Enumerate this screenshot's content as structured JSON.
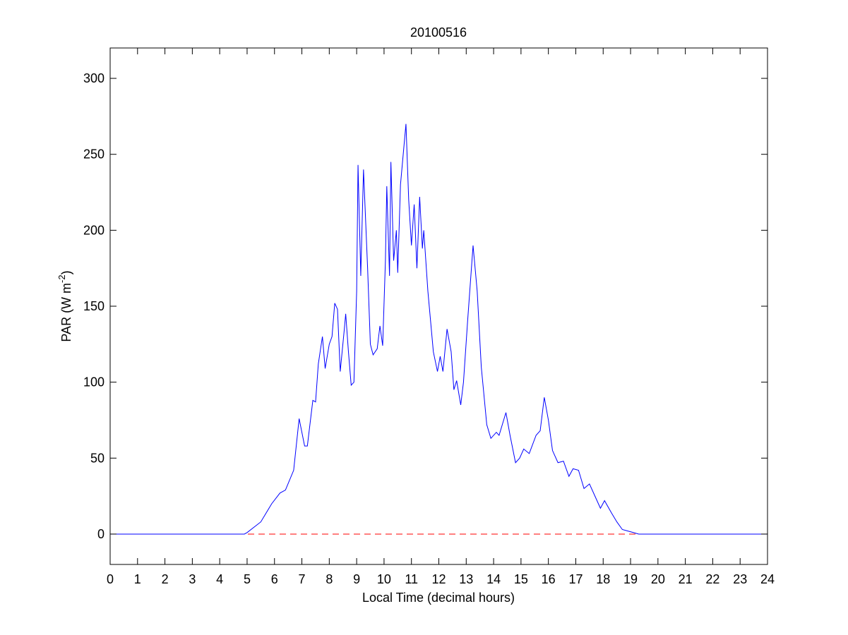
{
  "chart_data": {
    "type": "line",
    "title": "20100516",
    "xlabel": "Local Time (decimal hours)",
    "ylabel": {
      "text": "PAR (W m",
      "superscript": "-2",
      "suffix": ")"
    },
    "xlim": [
      0,
      24
    ],
    "ylim": [
      -20,
      320
    ],
    "xticks": [
      0,
      1,
      2,
      3,
      4,
      5,
      6,
      7,
      8,
      9,
      10,
      11,
      12,
      13,
      14,
      15,
      16,
      17,
      18,
      19,
      20,
      21,
      22,
      23,
      24
    ],
    "yticks": [
      0,
      50,
      100,
      150,
      200,
      250,
      300
    ],
    "grid": false,
    "reference_line": {
      "y": 0,
      "color": "#ff0000",
      "dashed": true
    },
    "series": [
      {
        "color": "#0000ff",
        "x": [
          0,
          4.9,
          5.0,
          5.5,
          5.9,
          6.2,
          6.4,
          6.7,
          6.9,
          7.1,
          7.2,
          7.4,
          7.5,
          7.6,
          7.75,
          7.85,
          8.0,
          8.1,
          8.2,
          8.3,
          8.4,
          8.55,
          8.6,
          8.7,
          8.8,
          8.9,
          9.0,
          9.05,
          9.15,
          9.25,
          9.4,
          9.5,
          9.6,
          9.75,
          9.85,
          9.95,
          10.05,
          10.1,
          10.2,
          10.25,
          10.35,
          10.45,
          10.5,
          10.6,
          10.7,
          10.8,
          10.9,
          11.0,
          11.1,
          11.2,
          11.3,
          11.4,
          11.45,
          11.6,
          11.8,
          11.95,
          12.05,
          12.15,
          12.3,
          12.45,
          12.55,
          12.65,
          12.8,
          12.9,
          13.05,
          13.25,
          13.4,
          13.55,
          13.75,
          13.9,
          14.1,
          14.2,
          14.45,
          14.6,
          14.8,
          14.95,
          15.1,
          15.3,
          15.55,
          15.7,
          15.85,
          16.0,
          16.15,
          16.35,
          16.55,
          16.75,
          16.9,
          17.1,
          17.3,
          17.5,
          17.7,
          17.9,
          18.05,
          18.3,
          18.5,
          18.7,
          18.9,
          19.1,
          19.3,
          24
        ],
        "values": [
          0,
          0,
          1,
          8,
          20,
          27,
          29,
          42,
          76,
          58,
          58,
          88,
          87,
          112,
          130,
          109,
          125,
          130,
          152,
          148,
          107,
          135,
          145,
          120,
          98,
          100,
          160,
          243,
          170,
          240,
          175,
          125,
          118,
          122,
          137,
          124,
          180,
          229,
          170,
          245,
          180,
          200,
          172,
          230,
          250,
          270,
          220,
          190,
          217,
          175,
          222,
          188,
          200,
          160,
          120,
          107,
          117,
          107,
          135,
          120,
          95,
          101,
          85,
          100,
          140,
          190,
          160,
          110,
          72,
          63,
          67,
          65,
          80,
          65,
          47,
          50,
          56,
          53,
          65,
          68,
          90,
          75,
          55,
          47,
          48,
          38,
          43,
          42,
          30,
          33,
          25,
          17,
          22,
          14,
          8,
          3,
          2,
          1,
          0,
          0
        ]
      }
    ]
  }
}
